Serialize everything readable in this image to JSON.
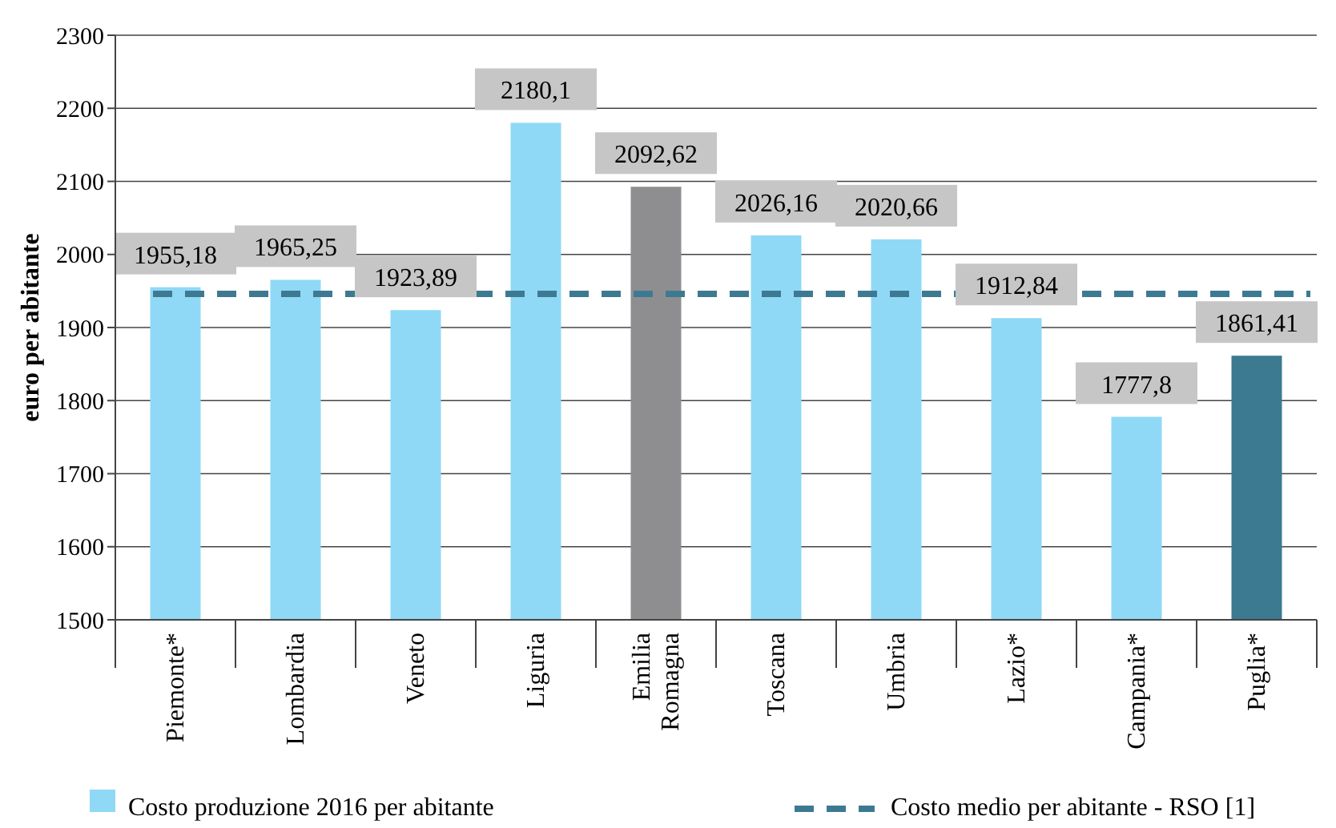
{
  "chart_data": {
    "type": "bar",
    "ylabel": "euro per abitante",
    "categories": [
      "Piemonte*",
      "Lombardia",
      "Veneto",
      "Liguria",
      "Emilia Romagna",
      "Toscana",
      "Umbria",
      "Lazio*",
      "Campania*",
      "Puglia*"
    ],
    "series": [
      {
        "name": "Costo produzione 2016 per abitante",
        "color": "#8fd9f6",
        "colors": [
          "#8fd9f6",
          "#8fd9f6",
          "#8fd9f6",
          "#8fd9f6",
          "#8e8e90",
          "#8fd9f6",
          "#8fd9f6",
          "#8fd9f6",
          "#8fd9f6",
          "#3b7a91"
        ],
        "values": [
          1955.18,
          1965.25,
          1923.89,
          2180.1,
          2092.62,
          2026.16,
          2020.66,
          1912.84,
          1777.8,
          1861.41
        ],
        "value_labels": [
          "1955,18",
          "1965,25",
          "1923,89",
          "2180,1",
          "2092,62",
          "2026,16",
          "2020,66",
          "1912,84",
          "1777,8",
          "1861,41"
        ]
      }
    ],
    "ylim": [
      1500,
      2300
    ],
    "yticks": [
      1500,
      1600,
      1700,
      1800,
      1900,
      2000,
      2100,
      2200,
      2300
    ],
    "grid": "y",
    "legend": "bottom",
    "ref_lines": [
      {
        "axis": "y",
        "value": 1946,
        "label": "Costo medio per abitante - RSO [1]",
        "color": "#3d7a92",
        "line_style": "dashed"
      }
    ]
  }
}
